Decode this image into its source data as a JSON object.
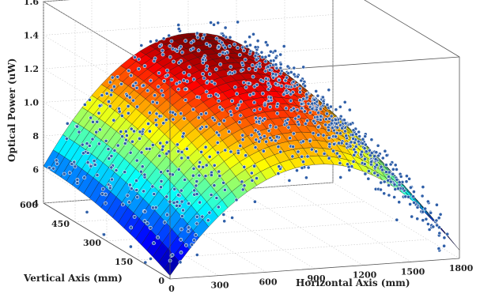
{
  "chart_data": {
    "type": "surface-scatter-3d",
    "xlabel": "Horizontal Axis (mm)",
    "ylabel": "Vertical Axis (mm)",
    "zlabel": "Optical Power (uW)",
    "x_ticks": [
      "0",
      "300",
      "600",
      "900",
      "1200",
      "1500",
      "1800"
    ],
    "y_ticks": [
      "0",
      "150",
      "300",
      "450",
      "600"
    ],
    "z_ticks": [
      "4",
      "6",
      "8",
      "1.0",
      "1.2",
      "1.4",
      "1.6"
    ],
    "xlim": [
      0,
      1800
    ],
    "ylim": [
      0,
      600
    ],
    "zlim": [
      0.4,
      1.6
    ],
    "surface": {
      "model": "quadratic dome",
      "peak": {
        "x": 900,
        "y": 600,
        "z": 1.35
      },
      "edge_values": {
        "x0_y0": 0.42,
        "x900_y0": 1.02,
        "x1800_y0": 0.45,
        "x0_y600": 0.62,
        "x1800_y600": 0.66
      },
      "colormap": "jet",
      "grid": [
        30,
        22
      ]
    },
    "scatter": {
      "color": "#2f5fa8",
      "count": 950,
      "noise_sd": 0.06,
      "seed": 7
    },
    "grid": true
  }
}
